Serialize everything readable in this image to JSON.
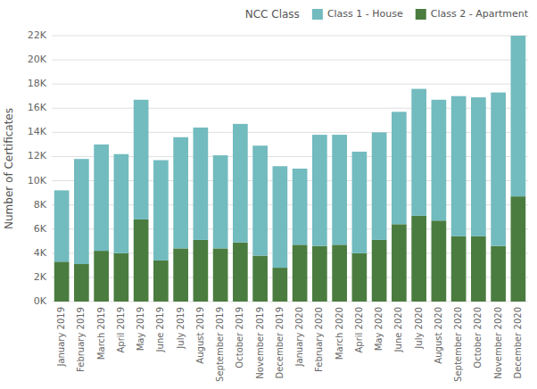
{
  "chart_data": {
    "type": "bar",
    "stacked": true,
    "y_label": "Number of Certificates",
    "legend_title": "NCC Class",
    "legend": "upper-right",
    "grid": true,
    "categories": [
      "January 2019",
      "February 2019",
      "March 2019",
      "April 2019",
      "May 2019",
      "June 2019",
      "July 2019",
      "August 2019",
      "September 2019",
      "October 2019",
      "November 2019",
      "December 2019",
      "January 2020",
      "February 2020",
      "March 2020",
      "April 2020",
      "May 2020",
      "June 2020",
      "July 2020",
      "August 2020",
      "September 2020",
      "October 2020",
      "November 2020",
      "December 2020"
    ],
    "series": [
      {
        "name": "Class 2 - Apartment",
        "color": "#4a7c3f",
        "values": [
          3300,
          3100,
          4200,
          4000,
          6800,
          3400,
          4400,
          5100,
          4400,
          4900,
          3800,
          2800,
          4700,
          4600,
          4700,
          4000,
          5100,
          6400,
          7100,
          6700,
          5400,
          5400,
          4600,
          8700
        ]
      },
      {
        "name": "Class 1 - House",
        "color": "#72bbbf",
        "values": [
          5900,
          8700,
          8800,
          8200,
          9900,
          8300,
          9200,
          9300,
          7700,
          9800,
          9100,
          8400,
          6300,
          9200,
          9100,
          8400,
          8900,
          9300,
          10500,
          10000,
          11600,
          11500,
          12700,
          13300
        ]
      }
    ],
    "ylim": [
      0,
      22000
    ],
    "yticks": [
      {
        "value": 0,
        "label": "0K"
      },
      {
        "value": 2000,
        "label": "2K"
      },
      {
        "value": 4000,
        "label": "4K"
      },
      {
        "value": 6000,
        "label": "6K"
      },
      {
        "value": 8000,
        "label": "8K"
      },
      {
        "value": 10000,
        "label": "10K"
      },
      {
        "value": 12000,
        "label": "12K"
      },
      {
        "value": 14000,
        "label": "14K"
      },
      {
        "value": 16000,
        "label": "16K"
      },
      {
        "value": 18000,
        "label": "18K"
      },
      {
        "value": 20000,
        "label": "20K"
      },
      {
        "value": 22000,
        "label": "22K"
      }
    ]
  }
}
